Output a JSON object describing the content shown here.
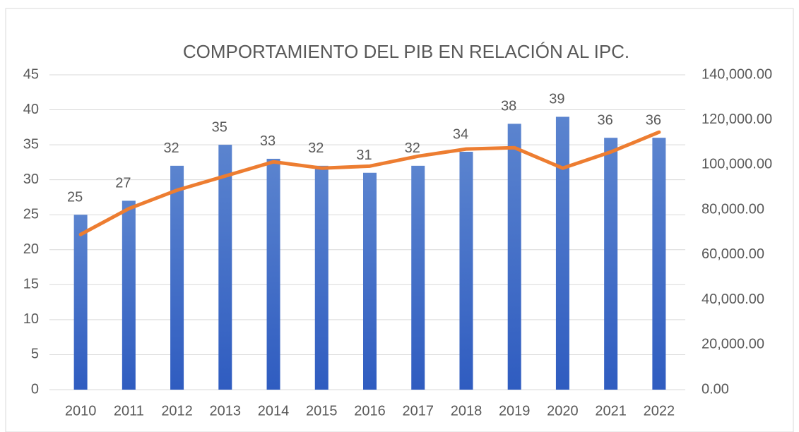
{
  "chart_data": {
    "type": "bar-line",
    "title": "COMPORTAMIENTO DEL PIB EN RELACIÓN AL IPC.",
    "categories": [
      "2010",
      "2011",
      "2012",
      "2013",
      "2014",
      "2015",
      "2016",
      "2017",
      "2018",
      "2019",
      "2020",
      "2021",
      "2022"
    ],
    "series": [
      {
        "type": "bar",
        "color": "#4472c4",
        "axis": "y",
        "values": [
          25,
          27,
          32,
          35,
          33,
          32,
          31,
          32,
          34,
          38,
          39,
          36,
          36
        ]
      },
      {
        "type": "line",
        "color": "#ed7d31",
        "axis": "y2",
        "values": [
          69000,
          80500,
          88700,
          95000,
          101300,
          98500,
          99400,
          103800,
          107000,
          107600,
          98500,
          105700,
          114500
        ]
      }
    ],
    "ylim": [
      0,
      45
    ],
    "yticks": [
      0,
      5,
      10,
      15,
      20,
      25,
      30,
      35,
      40,
      45
    ],
    "y2lim": [
      0,
      140000
    ],
    "y2ticks": [
      {
        "value": 0,
        "label": "0.00"
      },
      {
        "value": 20000,
        "label": "20,000.00"
      },
      {
        "value": 40000,
        "label": "40,000.00"
      },
      {
        "value": 60000,
        "label": "60,000.00"
      },
      {
        "value": 80000,
        "label": "80,000.00"
      },
      {
        "value": 100000,
        "label": "100,000.00"
      },
      {
        "value": 120000,
        "label": "120,000.00"
      },
      {
        "value": 140000,
        "label": "140,000.00"
      }
    ],
    "grid": true
  }
}
